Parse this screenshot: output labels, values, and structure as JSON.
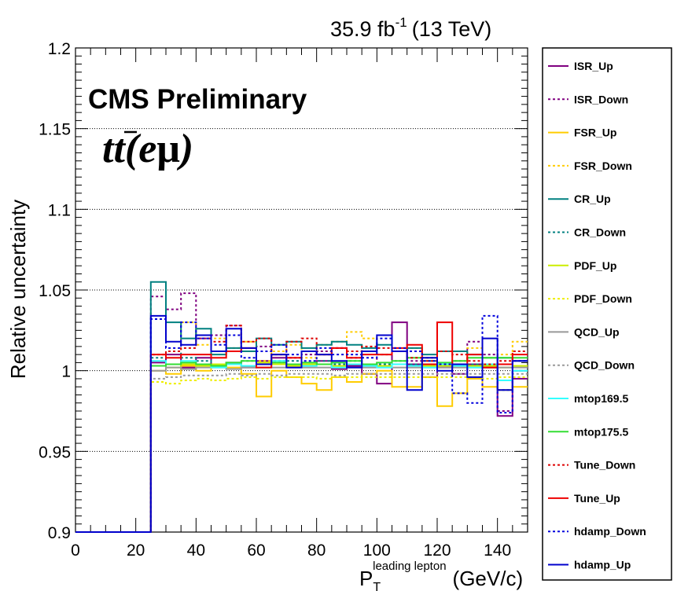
{
  "header": {
    "lumi": "35.9 fb",
    "lumi_sup": "-1",
    "energy": "(13 TeV)"
  },
  "labels": {
    "cms": "CMS Preliminary",
    "channel_t1": "t",
    "channel_t2": "t",
    "channel_rest": "(e",
    "channel_mu": "μ",
    "channel_close": ")"
  },
  "chart_data": {
    "type": "line",
    "title": "",
    "xlabel": "P",
    "xlabel_sub": "T",
    "xlabel_sup": "leading lepton",
    "xlabel_unit": "(GeV/c)",
    "ylabel": "Relative uncertainty",
    "xlim": [
      0,
      150
    ],
    "ylim": [
      0.9,
      1.2
    ],
    "xticks": [
      0,
      20,
      40,
      60,
      80,
      100,
      120,
      140
    ],
    "yticks": [
      0.9,
      0.95,
      1.0,
      1.05,
      1.1,
      1.15,
      1.2
    ],
    "ytick_labels": [
      "0.9",
      "0.95",
      "1",
      "1.05",
      "1.1",
      "1.15",
      "1.2"
    ],
    "grid_y": true,
    "legend_position": "right",
    "bin_edges": [
      0,
      5,
      10,
      15,
      20,
      25,
      30,
      35,
      40,
      45,
      50,
      55,
      60,
      65,
      70,
      75,
      80,
      85,
      90,
      95,
      100,
      105,
      110,
      115,
      120,
      125,
      130,
      135,
      140,
      145,
      150
    ],
    "series": [
      {
        "name": "ISR_Up",
        "color": "#800080",
        "dashed": false,
        "values": [
          0.9,
          0.9,
          0.9,
          0.9,
          0.9,
          1.005,
          1.01,
          1.002,
          1.008,
          1.004,
          1.005,
          1.002,
          1.006,
          1.008,
          1.003,
          1.004,
          1.006,
          1.001,
          1.003,
          0.998,
          0.992,
          1.03,
          1.004,
          0.996,
          1.002,
          0.998,
          1.004,
          1.002,
          0.972,
          0.995
        ]
      },
      {
        "name": "ISR_Down",
        "color": "#800080",
        "dashed": true,
        "values": [
          0.9,
          0.9,
          0.9,
          0.9,
          0.9,
          1.046,
          1.038,
          1.048,
          1.02,
          1.022,
          1.028,
          1.012,
          1.015,
          1.006,
          1.008,
          1.01,
          1.012,
          1.014,
          1.008,
          1.004,
          1.01,
          1.012,
          1.006,
          1.008,
          1.004,
          1.006,
          1.018,
          1.01,
          0.975,
          1.0
        ]
      },
      {
        "name": "FSR_Up",
        "color": "#ffcc00",
        "dashed": false,
        "values": [
          0.9,
          0.9,
          0.9,
          0.9,
          0.9,
          1.0,
          0.998,
          1.003,
          1.0,
          1.004,
          1.002,
          0.998,
          0.984,
          1.0,
          0.996,
          0.992,
          0.988,
          0.996,
          0.993,
          0.998,
          1.0,
          0.99,
          0.99,
          0.996,
          0.978,
          0.986,
          0.995,
          0.99,
          0.988,
          0.99
        ]
      },
      {
        "name": "FSR_Down",
        "color": "#ffcc00",
        "dashed": true,
        "values": [
          0.9,
          0.9,
          0.9,
          0.9,
          0.9,
          1.01,
          1.012,
          1.03,
          1.016,
          1.02,
          1.014,
          1.018,
          1.006,
          1.012,
          1.016,
          1.008,
          1.016,
          1.018,
          1.024,
          1.02,
          1.01,
          1.012,
          1.014,
          1.008,
          1.012,
          1.006,
          1.014,
          1.008,
          1.01,
          1.018
        ]
      },
      {
        "name": "CR_Up",
        "color": "#008080",
        "dashed": false,
        "values": [
          0.9,
          0.9,
          0.9,
          0.9,
          0.9,
          1.055,
          1.03,
          1.02,
          1.026,
          1.01,
          1.014,
          1.012,
          1.02,
          1.016,
          1.018,
          1.014,
          1.016,
          1.018,
          1.016,
          1.014,
          1.016,
          1.012,
          1.014,
          1.01,
          1.012,
          1.012,
          1.01,
          1.008,
          1.008,
          1.006
        ]
      },
      {
        "name": "CR_Down",
        "color": "#008080",
        "dashed": true,
        "values": [
          0.9,
          0.9,
          0.9,
          0.9,
          0.9,
          1.008,
          1.012,
          1.008,
          1.006,
          1.004,
          1.004,
          1.006,
          1.004,
          1.004,
          1.006,
          1.004,
          1.006,
          1.004,
          1.006,
          1.004,
          1.004,
          1.006,
          1.004,
          1.004,
          1.004,
          1.004,
          1.004,
          1.004,
          0.988,
          1.0
        ]
      },
      {
        "name": "PDF_Up",
        "color": "#ccee00",
        "dashed": false,
        "values": [
          0.9,
          0.9,
          0.9,
          0.9,
          0.9,
          1.003,
          1.002,
          1.004,
          1.003,
          1.004,
          1.004,
          1.003,
          1.005,
          1.004,
          1.003,
          1.004,
          1.004,
          1.003,
          1.004,
          1.003,
          1.003,
          1.004,
          1.003,
          1.003,
          1.003,
          1.003,
          1.003,
          1.003,
          1.002,
          1.003
        ]
      },
      {
        "name": "PDF_Down",
        "color": "#eeee00",
        "dashed": true,
        "values": [
          0.9,
          0.9,
          0.9,
          0.9,
          0.9,
          0.993,
          0.992,
          0.994,
          0.995,
          0.994,
          0.995,
          0.996,
          0.995,
          0.996,
          0.996,
          0.996,
          0.995,
          0.996,
          0.996,
          0.996,
          0.996,
          0.996,
          0.996,
          0.996,
          0.996,
          0.996,
          0.996,
          0.995,
          0.996,
          0.996
        ]
      },
      {
        "name": "QCD_Up",
        "color": "#999999",
        "dashed": false,
        "values": [
          0.9,
          0.9,
          0.9,
          0.9,
          0.9,
          1.0,
          1.002,
          1.001,
          1.002,
          1.002,
          1.001,
          1.002,
          1.002,
          1.002,
          1.002,
          1.002,
          1.002,
          1.002,
          1.002,
          1.002,
          1.002,
          1.002,
          1.002,
          1.002,
          1.002,
          1.002,
          1.002,
          1.002,
          1.002,
          1.002
        ]
      },
      {
        "name": "QCD_Down",
        "color": "#999999",
        "dashed": true,
        "values": [
          0.9,
          0.9,
          0.9,
          0.9,
          0.9,
          0.995,
          0.996,
          0.997,
          0.997,
          0.997,
          0.998,
          0.997,
          0.998,
          0.997,
          0.998,
          0.998,
          0.998,
          0.997,
          0.998,
          0.998,
          0.998,
          0.998,
          0.998,
          0.998,
          0.998,
          0.998,
          0.998,
          0.998,
          0.998,
          0.998
        ]
      },
      {
        "name": "mtop169.5",
        "color": "#33ffff",
        "dashed": false,
        "values": [
          0.9,
          0.9,
          0.9,
          0.9,
          0.9,
          1.006,
          1.004,
          1.006,
          1.004,
          1.002,
          1.004,
          1.003,
          1.002,
          1.006,
          1.004,
          1.003,
          1.004,
          1.002,
          1.004,
          1.003,
          1.002,
          1.004,
          1.003,
          1.002,
          1.004,
          1.003,
          1.002,
          1.004,
          0.994,
          1.0
        ]
      },
      {
        "name": "mtop175.5",
        "color": "#33dd33",
        "dashed": false,
        "values": [
          0.9,
          0.9,
          0.9,
          0.9,
          0.9,
          1.003,
          1.004,
          1.005,
          1.004,
          1.003,
          1.005,
          1.006,
          1.004,
          1.005,
          1.004,
          1.005,
          1.004,
          1.005,
          1.006,
          1.004,
          1.005,
          1.006,
          1.008,
          1.006,
          1.005,
          1.006,
          1.008,
          1.008,
          1.008,
          1.008
        ]
      },
      {
        "name": "Tune_Down",
        "color": "#dd0000",
        "dashed": true,
        "values": [
          0.9,
          0.9,
          0.9,
          0.9,
          0.9,
          1.01,
          1.012,
          1.014,
          1.02,
          1.018,
          1.028,
          1.018,
          1.02,
          1.01,
          1.018,
          1.02,
          1.01,
          1.014,
          1.012,
          1.015,
          1.014,
          1.012,
          1.008,
          1.006,
          1.012,
          1.01,
          1.006,
          1.004,
          1.006,
          1.012
        ]
      },
      {
        "name": "Tune_Up",
        "color": "#ee0000",
        "dashed": false,
        "values": [
          0.9,
          0.9,
          0.9,
          0.9,
          0.9,
          1.01,
          1.008,
          1.01,
          1.01,
          1.008,
          1.012,
          1.014,
          1.002,
          1.01,
          1.008,
          1.012,
          1.01,
          1.014,
          1.008,
          1.01,
          1.01,
          1.014,
          1.016,
          1.004,
          1.03,
          1.004,
          1.01,
          1.002,
          1.004,
          1.01
        ]
      },
      {
        "name": "hdamp_Down",
        "color": "#0000dd",
        "dashed": true,
        "values": [
          0.9,
          0.9,
          0.9,
          0.9,
          0.9,
          1.032,
          1.014,
          1.03,
          1.02,
          1.016,
          1.022,
          1.008,
          1.012,
          1.016,
          1.01,
          1.006,
          1.014,
          1.01,
          1.01,
          1.008,
          1.02,
          1.014,
          1.012,
          1.006,
          1.004,
          0.986,
          0.98,
          1.034,
          0.974,
          1.006
        ]
      },
      {
        "name": "hdamp_Up",
        "color": "#0000cc",
        "dashed": false,
        "values": [
          0.9,
          0.9,
          0.9,
          0.9,
          0.9,
          1.034,
          1.018,
          1.016,
          1.022,
          1.012,
          1.026,
          1.014,
          1.004,
          1.01,
          1.002,
          1.012,
          1.01,
          1.006,
          1.002,
          1.012,
          1.022,
          1.012,
          0.988,
          1.008,
          1.0,
          1.004,
          0.996,
          1.02,
          0.988,
          1.006
        ]
      }
    ]
  }
}
